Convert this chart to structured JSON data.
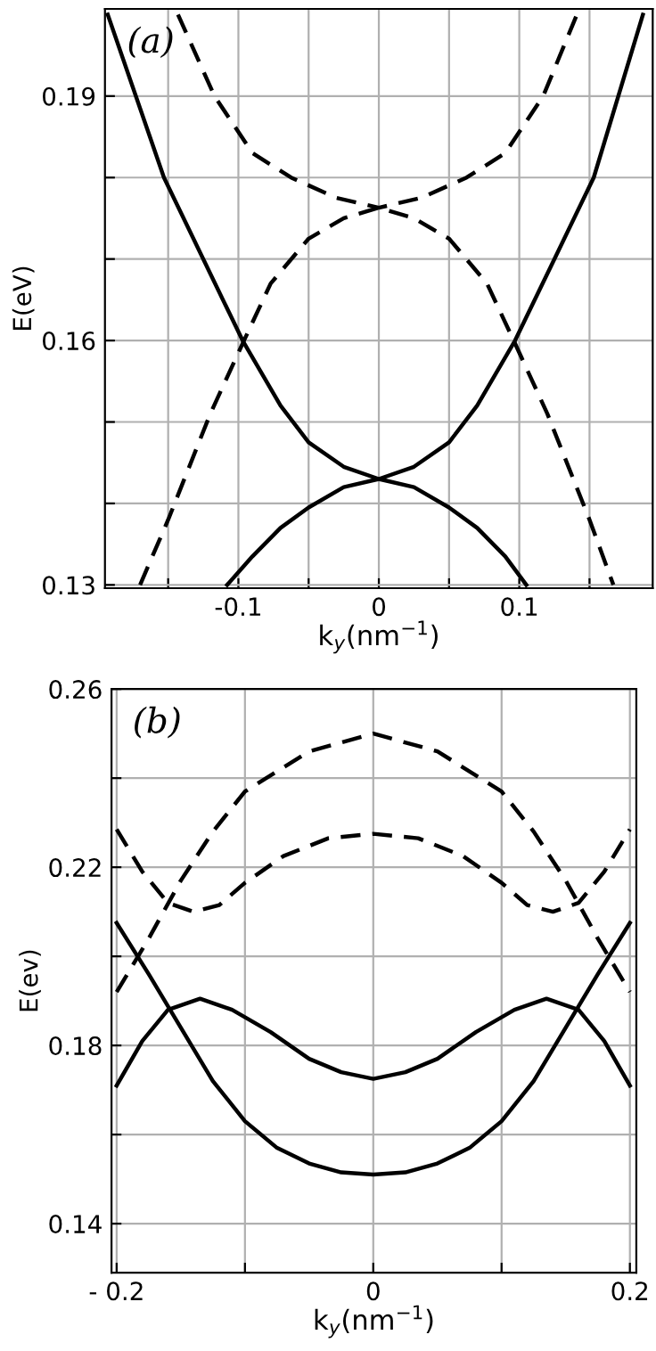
{
  "chart_data": [
    {
      "type": "line",
      "xlabel": "k$_{y}$(nm$^{−1}$)",
      "ylabel": "E(eV)",
      "annotations": [
        "(a)"
      ],
      "xlim": [
        -0.195,
        0.195
      ],
      "ylim": [
        0.1296,
        0.2007
      ],
      "xticks": [
        {
          "value": -0.15,
          "label": null
        },
        {
          "value": -0.1,
          "label": "-0.1"
        },
        {
          "value": -0.05,
          "label": null
        },
        0,
        {
          "value": 0.05,
          "label": null
        },
        {
          "value": 0.1,
          "label": "0.1"
        },
        {
          "value": 0.15,
          "label": null
        }
      ],
      "yticks": [
        0.13,
        {
          "value": 0.14,
          "label": null
        },
        {
          "value": 0.15,
          "label": null
        },
        0.16,
        {
          "value": 0.17,
          "label": null
        },
        {
          "value": 0.18,
          "label": null
        },
        0.19
      ],
      "grid": true,
      "series": [
        {
          "color": "#000000",
          "line_style": "solid",
          "x": [
            -0.193,
            -0.153,
            -0.125,
            -0.097,
            -0.07,
            -0.05,
            -0.025,
            0,
            0.025,
            0.05,
            0.07,
            0.097,
            0.125,
            0.153,
            0.188
          ],
          "values": [
            0.2,
            0.18,
            0.17,
            0.16,
            0.152,
            0.1475,
            0.1445,
            0.143,
            0.1445,
            0.1475,
            0.152,
            0.16,
            0.17,
            0.18,
            0.2
          ]
        },
        {
          "color": "#000000",
          "line_style": "solid",
          "x": [
            -0.108,
            -0.09,
            -0.07,
            -0.05,
            -0.025,
            0,
            0.025,
            0.05,
            0.07,
            0.09,
            0.105
          ],
          "values": [
            0.13,
            0.1335,
            0.137,
            0.1395,
            0.142,
            0.143,
            0.142,
            0.1395,
            0.137,
            0.1335,
            0.13
          ]
        },
        {
          "color": "#000000",
          "line_style": "dashed",
          "x": [
            -0.143,
            -0.117,
            -0.09,
            -0.0625,
            -0.03,
            0,
            0.03,
            0.0625,
            0.09,
            0.117,
            0.141
          ],
          "values": [
            0.2,
            0.19,
            0.183,
            0.18,
            0.1775,
            0.1763,
            0.1775,
            0.18,
            0.183,
            0.19,
            0.2
          ]
        },
        {
          "color": "#000000",
          "line_style": "dashed",
          "x": [
            -0.17,
            -0.15,
            -0.12,
            -0.096,
            -0.077,
            -0.05,
            -0.025,
            0,
            0.025,
            0.05,
            0.077,
            0.096,
            0.12,
            0.15,
            0.167
          ],
          "values": [
            0.13,
            0.138,
            0.151,
            0.16,
            0.167,
            0.1725,
            0.175,
            0.1763,
            0.175,
            0.1725,
            0.167,
            0.16,
            0.151,
            0.138,
            0.13
          ]
        }
      ]
    },
    {
      "type": "line",
      "xlabel": "k$_{y}$(nm$^{−1}$)",
      "ylabel": "E(ev)",
      "annotations": [
        "(b)"
      ],
      "xlim": [
        -0.204,
        0.205
      ],
      "ylim": [
        0.129,
        0.26
      ],
      "xticks": [
        {
          "value": -0.2,
          "label": "- 0.2"
        },
        {
          "value": -0.1,
          "label": null
        },
        0,
        {
          "value": 0.1,
          "label": null
        },
        0.2
      ],
      "yticks": [
        0.14,
        {
          "value": 0.16,
          "label": null
        },
        0.18,
        {
          "value": 0.2,
          "label": null
        },
        0.22,
        {
          "value": 0.24,
          "label": null
        },
        0.26
      ],
      "grid": true,
      "series": [
        {
          "color": "#000000",
          "line_style": "dashed",
          "x": [
            -0.2,
            -0.175,
            -0.15,
            -0.125,
            -0.1,
            -0.05,
            0,
            0.05,
            0.1,
            0.125,
            0.15,
            0.175,
            0.2
          ],
          "values": [
            0.192,
            0.204,
            0.217,
            0.228,
            0.237,
            0.246,
            0.25,
            0.246,
            0.237,
            0.228,
            0.217,
            0.204,
            0.192
          ]
        },
        {
          "color": "#000000",
          "line_style": "dashed",
          "x": [
            -0.2,
            -0.18,
            -0.16,
            -0.14,
            -0.12,
            -0.1,
            -0.07,
            -0.035,
            0,
            0.035,
            0.07,
            0.1,
            0.12,
            0.14,
            0.16,
            0.18,
            0.2
          ],
          "values": [
            0.2285,
            0.219,
            0.212,
            0.21,
            0.2115,
            0.2165,
            0.2225,
            0.2265,
            0.2275,
            0.2265,
            0.2225,
            0.2165,
            0.2115,
            0.21,
            0.212,
            0.219,
            0.2285
          ]
        },
        {
          "color": "#000000",
          "line_style": "solid",
          "x": [
            -0.2,
            -0.18,
            -0.16,
            -0.135,
            -0.11,
            -0.08,
            -0.05,
            -0.025,
            0,
            0.025,
            0.05,
            0.08,
            0.11,
            0.135,
            0.16,
            0.18,
            0.2
          ],
          "values": [
            0.171,
            0.181,
            0.188,
            0.1905,
            0.188,
            0.183,
            0.177,
            0.174,
            0.1725,
            0.174,
            0.177,
            0.183,
            0.188,
            0.1905,
            0.188,
            0.181,
            0.171
          ]
        },
        {
          "color": "#000000",
          "line_style": "solid",
          "x": [
            -0.2,
            -0.175,
            -0.15,
            -0.125,
            -0.1,
            -0.075,
            -0.05,
            -0.025,
            0,
            0.025,
            0.05,
            0.075,
            0.1,
            0.125,
            0.15,
            0.175,
            0.2
          ],
          "values": [
            0.2075,
            0.196,
            0.184,
            0.172,
            0.163,
            0.157,
            0.1535,
            0.1515,
            0.151,
            0.1515,
            0.1535,
            0.157,
            0.163,
            0.172,
            0.184,
            0.196,
            0.2075
          ]
        }
      ]
    }
  ]
}
